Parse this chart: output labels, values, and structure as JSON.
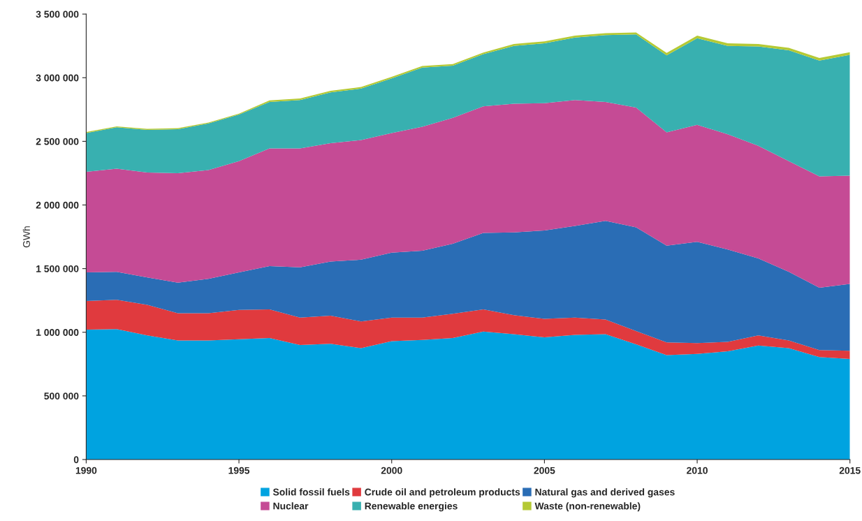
{
  "chart_data": {
    "type": "area",
    "stacked": true,
    "ylabel": "GWh",
    "x": [
      1990,
      1991,
      1992,
      1993,
      1994,
      1995,
      1996,
      1997,
      1998,
      1999,
      2000,
      2001,
      2002,
      2003,
      2004,
      2005,
      2006,
      2007,
      2008,
      2009,
      2010,
      2011,
      2012,
      2013,
      2014,
      2015
    ],
    "series": [
      {
        "name": "Solid fossil fuels",
        "color": "#00a3e0",
        "values": [
          1020000,
          1025000,
          975000,
          935000,
          935000,
          945000,
          955000,
          900000,
          910000,
          875000,
          930000,
          940000,
          955000,
          1005000,
          985000,
          960000,
          980000,
          985000,
          905000,
          820000,
          830000,
          850000,
          895000,
          875000,
          805000,
          790000
        ]
      },
      {
        "name": "Crude oil and petroleum products",
        "color": "#e03a3e",
        "values": [
          225000,
          230000,
          240000,
          215000,
          215000,
          230000,
          225000,
          215000,
          220000,
          210000,
          185000,
          175000,
          190000,
          175000,
          150000,
          145000,
          135000,
          115000,
          105000,
          100000,
          85000,
          75000,
          80000,
          60000,
          55000,
          65000
        ]
      },
      {
        "name": "Natural gas and derived gases",
        "color": "#2a6db5",
        "values": [
          225000,
          220000,
          215000,
          240000,
          270000,
          295000,
          340000,
          395000,
          425000,
          485000,
          510000,
          525000,
          550000,
          600000,
          650000,
          695000,
          720000,
          775000,
          815000,
          760000,
          795000,
          725000,
          605000,
          540000,
          490000,
          525000
        ]
      },
      {
        "name": "Nuclear",
        "color": "#c54b95",
        "values": [
          790000,
          810000,
          825000,
          860000,
          855000,
          875000,
          925000,
          935000,
          930000,
          940000,
          940000,
          975000,
          990000,
          995000,
          1010000,
          1000000,
          990000,
          935000,
          940000,
          890000,
          920000,
          905000,
          885000,
          870000,
          875000,
          850000
        ]
      },
      {
        "name": "Renewable energies",
        "color": "#38b0b0",
        "values": [
          305000,
          325000,
          335000,
          345000,
          365000,
          365000,
          365000,
          380000,
          400000,
          405000,
          430000,
          465000,
          410000,
          410000,
          455000,
          470000,
          490000,
          525000,
          575000,
          605000,
          680000,
          695000,
          780000,
          870000,
          910000,
          950000
        ]
      },
      {
        "name": "Waste (non-renewable)",
        "color": "#b5c934",
        "values": [
          8000,
          8000,
          8000,
          8000,
          8000,
          8000,
          12000,
          12000,
          12000,
          12000,
          12000,
          12000,
          12000,
          12000,
          15000,
          15000,
          15000,
          15000,
          15000,
          20000,
          20000,
          20000,
          20000,
          20000,
          20000,
          20000
        ]
      }
    ],
    "xlim": [
      1990,
      2015
    ],
    "xticks": [
      1990,
      1995,
      2000,
      2005,
      2010,
      2015
    ],
    "ylim": [
      0,
      3500000
    ],
    "yticks": [
      0,
      {
        "value": 500000,
        "label": "500 000"
      },
      {
        "value": 1000000,
        "label": "1 000 000"
      },
      {
        "value": 1500000,
        "label": "1 500 000"
      },
      {
        "value": 2000000,
        "label": "2 000 000"
      },
      {
        "value": 2500000,
        "label": "2 500 000"
      },
      {
        "value": 3000000,
        "label": "3 000 000"
      },
      {
        "value": 3500000,
        "label": "3 500 000"
      }
    ],
    "legend": "bottom"
  }
}
